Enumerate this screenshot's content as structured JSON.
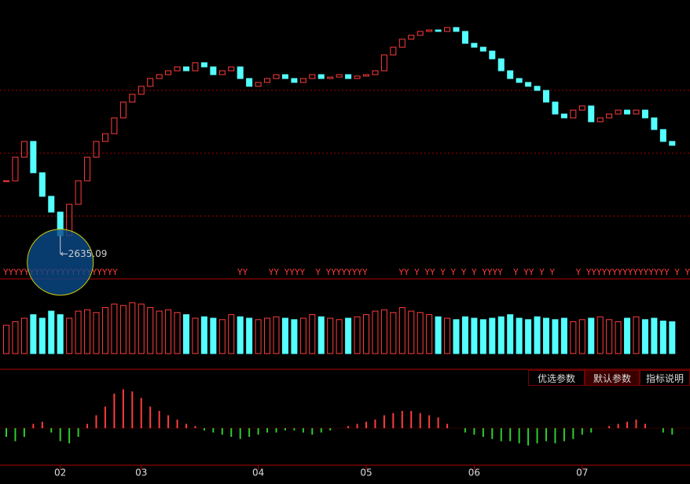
{
  "chart_data": {
    "type": "candlestick",
    "close": [
      2938,
      3035,
      3100,
      2971,
      2874,
      2809,
      2712,
      2841,
      2938,
      3035,
      3100,
      3132,
      3197,
      3262,
      3294,
      3327,
      3359,
      3375,
      3391,
      3407,
      3391,
      3424,
      3407,
      3375,
      3391,
      3407,
      3359,
      3327,
      3343,
      3359,
      3375,
      3359,
      3343,
      3359,
      3375,
      3359,
      3365,
      3375,
      3359,
      3369,
      3375,
      3391,
      3456,
      3488,
      3521,
      3537,
      3553,
      3559,
      3553,
      3569,
      3553,
      3504,
      3488,
      3472,
      3440,
      3391,
      3359,
      3343,
      3327,
      3310,
      3262,
      3213,
      3197,
      3229,
      3246,
      3181,
      3197,
      3213,
      3229,
      3213,
      3229,
      3197,
      3149,
      3100,
      3084
    ],
    "ylim": [
      2550,
      3650
    ],
    "annotation": {
      "value": 2635.09,
      "label": "←2635.09"
    },
    "categories": [
      null,
      null,
      null,
      null,
      null,
      null,
      "02",
      null,
      null,
      null,
      null,
      null,
      null,
      null,
      null,
      "03",
      null,
      null,
      null,
      null,
      null,
      null,
      null,
      null,
      null,
      null,
      null,
      null,
      "04",
      null,
      null,
      null,
      null,
      null,
      null,
      null,
      null,
      null,
      null,
      null,
      "05",
      null,
      null,
      null,
      null,
      null,
      null,
      null,
      null,
      null,
      null,
      null,
      "06",
      null,
      null,
      null,
      null,
      null,
      null,
      null,
      null,
      null,
      null,
      null,
      "07",
      null,
      null,
      null,
      null,
      null,
      null,
      null,
      null,
      null,
      null
    ],
    "signal_row": "YYYYYYYYYYYYYYYYYYYYYY                       YY    YY YYYY  Y YYYYYYYY      YY Y YY Y Y Y Y YYYY  Y YY Y Y    Y YYYYYYYYYYYYYYYY Y YY YYYY",
    "volume": [
      40,
      45,
      50,
      55,
      50,
      60,
      55,
      50,
      60,
      62,
      58,
      65,
      70,
      68,
      72,
      70,
      65,
      60,
      62,
      58,
      55,
      50,
      52,
      50,
      48,
      55,
      52,
      50,
      48,
      50,
      52,
      50,
      48,
      50,
      55,
      52,
      50,
      48,
      50,
      52,
      55,
      60,
      62,
      58,
      65,
      60,
      58,
      55,
      52,
      50,
      48,
      52,
      50,
      48,
      50,
      52,
      55,
      50,
      48,
      52,
      50,
      48,
      50,
      45,
      48,
      50,
      52,
      48,
      45,
      50,
      52,
      48,
      50,
      46,
      45
    ],
    "volume_ylim": [
      0,
      100
    ],
    "macd": [
      -0.2,
      -0.3,
      -0.2,
      0.1,
      0.15,
      -0.1,
      -0.3,
      -0.35,
      -0.2,
      0.1,
      0.3,
      0.5,
      0.8,
      0.9,
      0.85,
      0.7,
      0.5,
      0.4,
      0.3,
      0.2,
      0.1,
      0.05,
      -0.05,
      -0.1,
      -0.15,
      -0.2,
      -0.25,
      -0.2,
      -0.15,
      -0.1,
      -0.1,
      -0.05,
      -0.05,
      -0.1,
      -0.15,
      -0.1,
      -0.05,
      0,
      0.05,
      0.1,
      0.15,
      0.2,
      0.3,
      0.35,
      0.4,
      0.4,
      0.35,
      0.3,
      0.25,
      0.1,
      0,
      -0.1,
      -0.15,
      -0.2,
      -0.25,
      -0.3,
      -0.3,
      -0.35,
      -0.4,
      -0.35,
      -0.3,
      -0.35,
      -0.3,
      -0.25,
      -0.15,
      -0.1,
      0,
      0.05,
      0.1,
      0.15,
      0.2,
      0.1,
      0,
      -0.1,
      -0.15
    ],
    "macd_ylim": [
      -1,
      1
    ],
    "up_color": "#ff3c3c",
    "down_color": "#54ffff"
  },
  "buttons": [
    "优选参数",
    "默认参数",
    "指标说明"
  ]
}
